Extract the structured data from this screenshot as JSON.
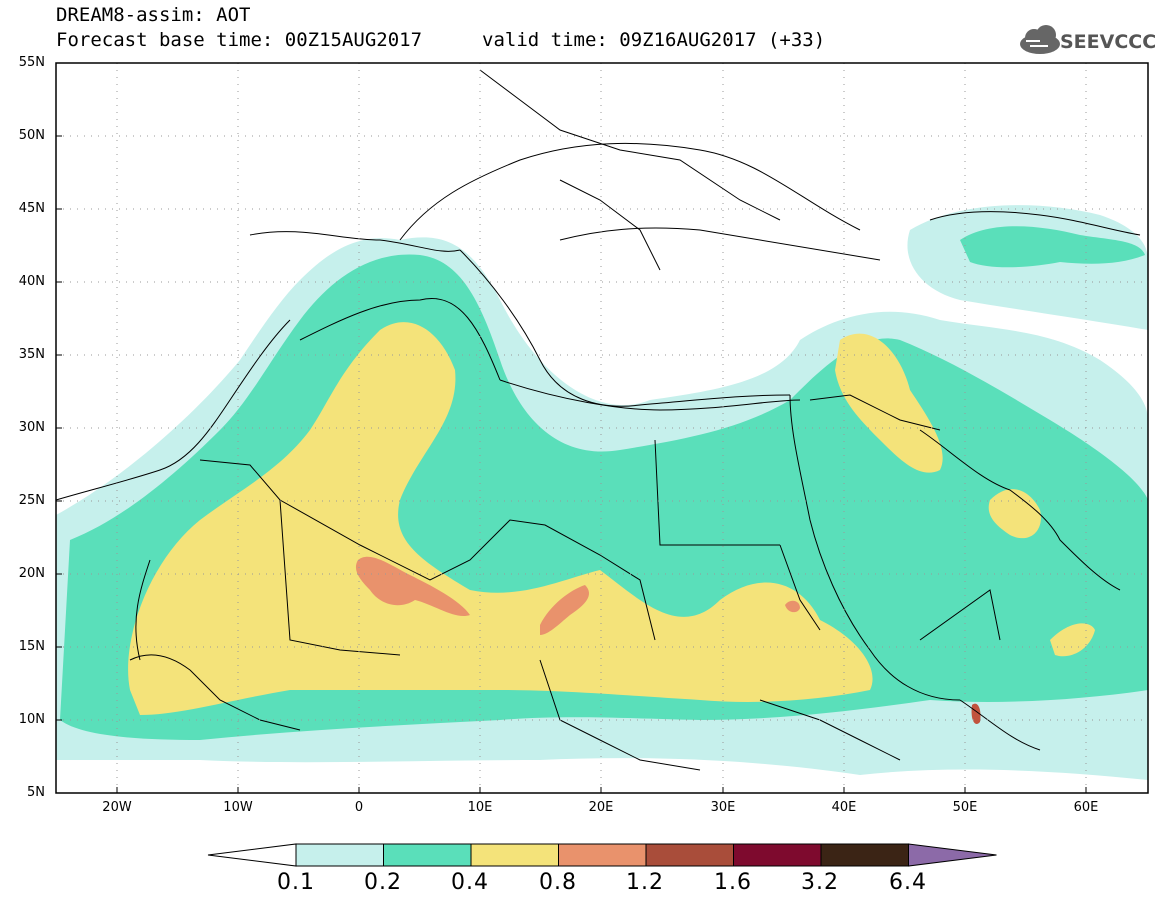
{
  "header": {
    "title_line1": "DREAM8-assim: AOT",
    "title_line2": "Forecast base time: 00Z15AUG2017",
    "valid_time": "valid time: 09Z16AUG2017 (+33)",
    "logo_text": "SEEVCCC"
  },
  "map": {
    "lat_labels": [
      "55N",
      "50N",
      "45N",
      "40N",
      "35N",
      "30N",
      "25N",
      "20N",
      "15N",
      "10N",
      "5N"
    ],
    "lon_labels": [
      "20W",
      "10W",
      "0",
      "10E",
      "20E",
      "30E",
      "40E",
      "50E",
      "60E"
    ]
  },
  "colorbar": {
    "labels": [
      "0.1",
      "0.2",
      "0.4",
      "0.8",
      "1.2",
      "1.6",
      "3.2",
      "6.4"
    ],
    "colors": [
      "#c6f0ec",
      "#5adfba",
      "#f4e37a",
      "#e9926c",
      "#a94d3a",
      "#7e0a2e",
      "#3b2415",
      "#8c6aa8"
    ]
  }
}
